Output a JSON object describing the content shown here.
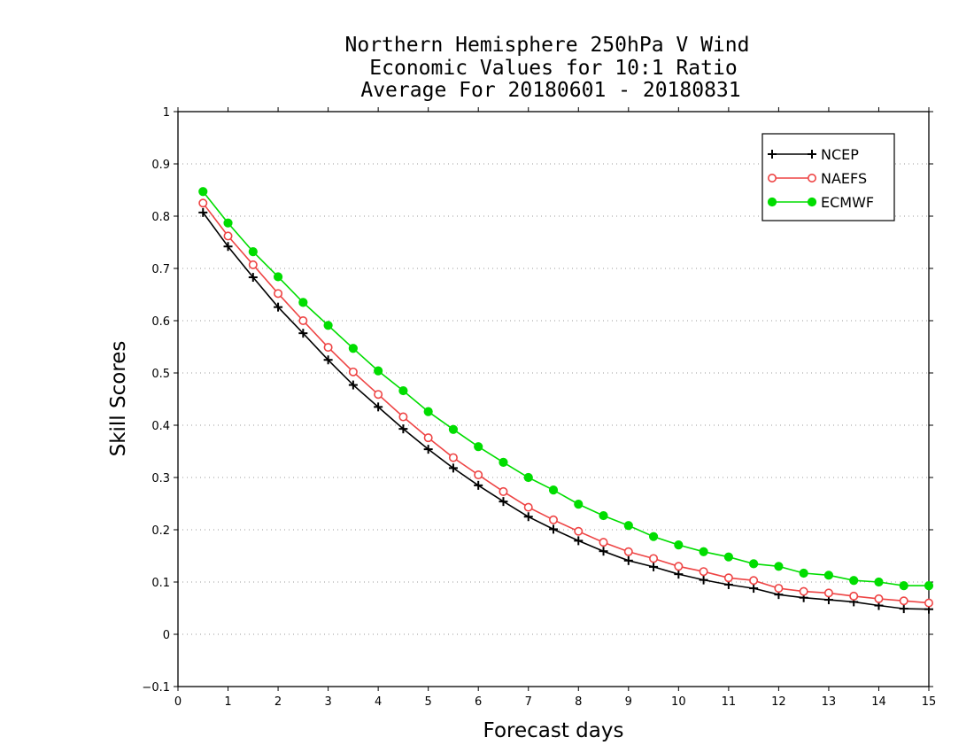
{
  "chart_data": {
    "type": "line",
    "title": [
      "Northern Hemisphere 250hPa V Wind",
      "Economic Values for 10:1 Ratio",
      "Average For 20180601 - 20180831"
    ],
    "xlabel": "Forecast days",
    "ylabel": "Skill Scores",
    "xlim": [
      0,
      15
    ],
    "ylim": [
      -0.1,
      1
    ],
    "xticks": [
      "0",
      "1",
      "2",
      "3",
      "4",
      "5",
      "6",
      "7",
      "8",
      "9",
      "10",
      "11",
      "12",
      "13",
      "14",
      "15"
    ],
    "yticks": [
      "−0.1",
      "0",
      "0.1",
      "0.2",
      "0.3",
      "0.4",
      "0.5",
      "0.6",
      "0.7",
      "0.8",
      "0.9",
      "1"
    ],
    "grid": true,
    "legend_position": "top-right",
    "x": [
      0.5,
      1,
      1.5,
      2,
      2.5,
      3,
      3.5,
      4,
      4.5,
      5,
      5.5,
      6,
      6.5,
      7,
      7.5,
      8,
      8.5,
      9,
      9.5,
      10,
      10.5,
      11,
      11.5,
      12,
      12.5,
      13,
      13.5,
      14,
      14.5,
      15
    ],
    "series": [
      {
        "name": "NCEP",
        "color": "#000000",
        "marker": "plus",
        "values": [
          0.807,
          0.742,
          0.683,
          0.626,
          0.576,
          0.525,
          0.477,
          0.435,
          0.393,
          0.354,
          0.318,
          0.285,
          0.254,
          0.225,
          0.201,
          0.179,
          0.159,
          0.141,
          0.129,
          0.115,
          0.104,
          0.095,
          0.088,
          0.076,
          0.07,
          0.066,
          0.062,
          0.055,
          0.049,
          0.048
        ]
      },
      {
        "name": "NAEFS",
        "color": "#ee4444",
        "marker": "open-circle",
        "values": [
          0.825,
          0.762,
          0.707,
          0.652,
          0.6,
          0.549,
          0.502,
          0.459,
          0.416,
          0.376,
          0.338,
          0.305,
          0.273,
          0.243,
          0.219,
          0.197,
          0.176,
          0.158,
          0.145,
          0.13,
          0.12,
          0.108,
          0.103,
          0.088,
          0.082,
          0.079,
          0.073,
          0.068,
          0.064,
          0.06
        ]
      },
      {
        "name": "ECMWF",
        "color": "#00dd00",
        "marker": "filled-circle",
        "values": [
          0.847,
          0.787,
          0.732,
          0.684,
          0.635,
          0.591,
          0.547,
          0.504,
          0.466,
          0.426,
          0.392,
          0.359,
          0.329,
          0.3,
          0.276,
          0.249,
          0.227,
          0.208,
          0.187,
          0.171,
          0.158,
          0.148,
          0.135,
          0.13,
          0.117,
          0.113,
          0.103,
          0.1,
          0.093,
          0.093
        ]
      }
    ]
  }
}
